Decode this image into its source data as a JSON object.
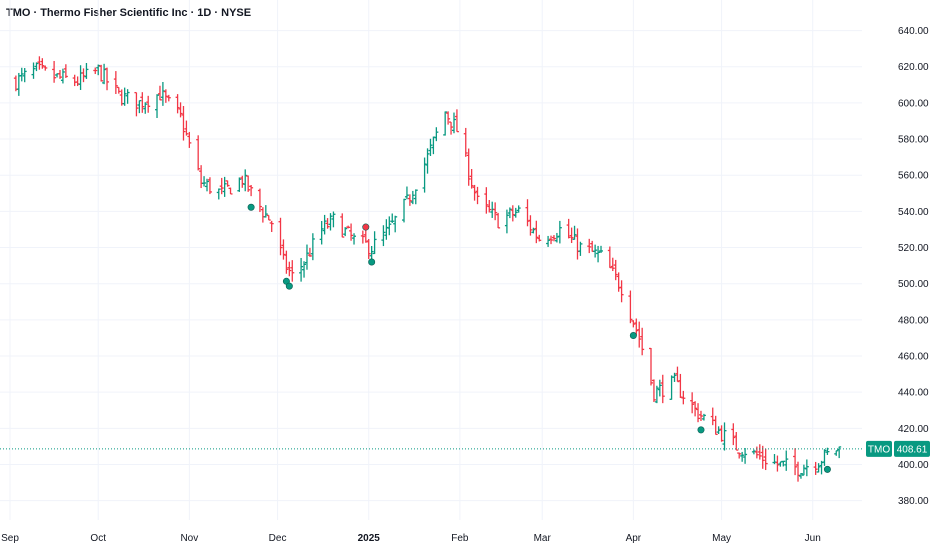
{
  "header": {
    "title": "TMO · Thermo Fisher Scientific Inc · 1D · NYSE"
  },
  "price_tag": {
    "symbol": "TMO",
    "value": "408.61",
    "color": "#089981"
  },
  "colors": {
    "up": "#089981",
    "down": "#f23645",
    "grid": "#f0f3fa",
    "text": "#131722"
  },
  "chart_data": {
    "type": "ohlc",
    "title": "TMO · Thermo Fisher Scientific Inc · 1D · NYSE",
    "ylim": [
      370,
      650
    ],
    "y_ticks": [
      "380.00",
      "400.00",
      "420.00",
      "440.00",
      "460.00",
      "480.00",
      "500.00",
      "520.00",
      "540.00",
      "560.00",
      "580.00",
      "600.00",
      "620.00",
      "640.00"
    ],
    "x_ticks": [
      "Sep",
      "Oct",
      "Nov",
      "Dec",
      "2025",
      "Feb",
      "Mar",
      "Apr",
      "May",
      "Jun"
    ],
    "last_price": 408.61,
    "series_close_approx": [
      [
        "2024-09-03",
        612
      ],
      [
        "2024-09-10",
        618
      ],
      [
        "2024-09-17",
        614
      ],
      [
        "2024-09-24",
        612
      ],
      [
        "2024-10-01",
        618
      ],
      [
        "2024-10-08",
        604
      ],
      [
        "2024-10-15",
        600
      ],
      [
        "2024-10-22",
        605
      ],
      [
        "2024-10-29",
        592
      ],
      [
        "2024-11-05",
        556
      ],
      [
        "2024-11-12",
        550
      ],
      [
        "2024-11-19",
        558
      ],
      [
        "2024-11-26",
        540
      ],
      [
        "2024-11-29",
        534
      ],
      [
        "2024-12-03",
        512
      ],
      [
        "2024-12-06",
        504
      ],
      [
        "2024-12-10",
        512
      ],
      [
        "2024-12-16",
        530
      ],
      [
        "2024-12-20",
        535
      ],
      [
        "2024-12-27",
        524
      ],
      [
        "2025-01-02",
        520
      ],
      [
        "2025-01-08",
        530
      ],
      [
        "2025-01-14",
        545
      ],
      [
        "2025-01-21",
        570
      ],
      [
        "2025-01-27",
        595
      ],
      [
        "2025-01-31",
        585
      ],
      [
        "2025-02-07",
        545
      ],
      [
        "2025-02-14",
        535
      ],
      [
        "2025-02-21",
        540
      ],
      [
        "2025-02-28",
        525
      ],
      [
        "2025-03-07",
        530
      ],
      [
        "2025-03-14",
        520
      ],
      [
        "2025-03-21",
        515
      ],
      [
        "2025-03-28",
        498
      ],
      [
        "2025-04-03",
        470
      ],
      [
        "2025-04-08",
        440
      ],
      [
        "2025-04-15",
        445
      ],
      [
        "2025-04-22",
        430
      ],
      [
        "2025-04-29",
        420
      ],
      [
        "2025-05-06",
        410
      ],
      [
        "2025-05-13",
        405
      ],
      [
        "2025-05-20",
        400
      ],
      [
        "2025-05-27",
        398
      ],
      [
        "2025-06-03",
        402
      ],
      [
        "2025-06-09",
        408.61
      ]
    ],
    "event_markers": [
      {
        "date": "2024-11-22",
        "color": "#089981"
      },
      {
        "date": "2024-12-04",
        "color": "#089981"
      },
      {
        "date": "2024-12-05",
        "color": "#089981"
      },
      {
        "date": "2024-12-31",
        "color": "#f23645"
      },
      {
        "date": "2025-01-02",
        "color": "#089981"
      },
      {
        "date": "2025-04-01",
        "color": "#089981"
      },
      {
        "date": "2025-04-24",
        "color": "#089981"
      },
      {
        "date": "2025-06-06",
        "color": "#089981"
      }
    ]
  }
}
